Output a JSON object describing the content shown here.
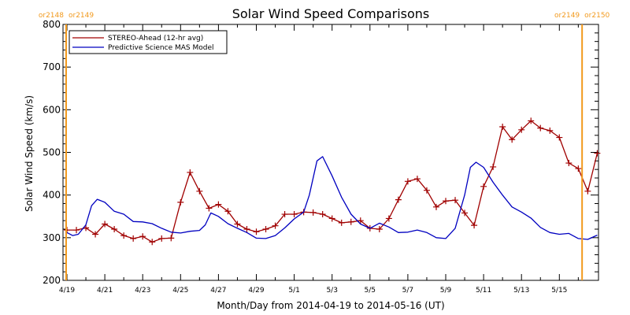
{
  "chart_data": {
    "type": "line",
    "title": "Solar Wind Speed Comparisons",
    "xlabel": "Month/Day from 2014-04-19 to 2014-05-16 (UT)",
    "ylabel": "Solar Wind Speed (km/s)",
    "ylim": [
      200,
      800
    ],
    "xlim_days": [
      0,
      27.2
    ],
    "x_ticks": [
      {
        "day": 0,
        "label": "4/19"
      },
      {
        "day": 2,
        "label": "4/21"
      },
      {
        "day": 4,
        "label": "4/23"
      },
      {
        "day": 6,
        "label": "4/25"
      },
      {
        "day": 8,
        "label": "4/27"
      },
      {
        "day": 10,
        "label": "4/29"
      },
      {
        "day": 12,
        "label": "5/1"
      },
      {
        "day": 14,
        "label": "5/3"
      },
      {
        "day": 16,
        "label": "5/5"
      },
      {
        "day": 18,
        "label": "5/7"
      },
      {
        "day": 20,
        "label": "5/9"
      },
      {
        "day": 22,
        "label": "5/11"
      },
      {
        "day": 24,
        "label": "5/13"
      },
      {
        "day": 26,
        "label": "5/15"
      }
    ],
    "y_ticks": [
      200,
      300,
      400,
      500,
      600,
      700,
      800
    ],
    "grid": false,
    "legend": "top-left",
    "series": [
      {
        "name": "STEREO-Ahead (12-hr avg)",
        "color": "#a00000",
        "marker": "plus",
        "points": [
          [
            0,
            318
          ],
          [
            0.5,
            318
          ],
          [
            1,
            323
          ],
          [
            1.5,
            308
          ],
          [
            2,
            332
          ],
          [
            2.5,
            320
          ],
          [
            3,
            305
          ],
          [
            3.5,
            298
          ],
          [
            4,
            303
          ],
          [
            4.5,
            290
          ],
          [
            5,
            298
          ],
          [
            5.5,
            299
          ],
          [
            6,
            383
          ],
          [
            6.5,
            453
          ],
          [
            7,
            409
          ],
          [
            7.5,
            369
          ],
          [
            8,
            378
          ],
          [
            8.5,
            362
          ],
          [
            9,
            332
          ],
          [
            9.5,
            320
          ],
          [
            10,
            314
          ],
          [
            10.5,
            320
          ],
          [
            11,
            328
          ],
          [
            11.5,
            355
          ],
          [
            12,
            355
          ],
          [
            12.5,
            360
          ],
          [
            13,
            359
          ],
          [
            13.5,
            355
          ],
          [
            14,
            345
          ],
          [
            14.5,
            335
          ],
          [
            15,
            337
          ],
          [
            15.5,
            340
          ],
          [
            16,
            322
          ],
          [
            16.5,
            320
          ],
          [
            17,
            345
          ],
          [
            17.5,
            389
          ],
          [
            18,
            432
          ],
          [
            18.5,
            438
          ],
          [
            19,
            411
          ],
          [
            19.5,
            372
          ],
          [
            20,
            386
          ],
          [
            20.5,
            388
          ],
          [
            21,
            358
          ],
          [
            21.5,
            329
          ],
          [
            22,
            420
          ],
          [
            22.5,
            466
          ],
          [
            23,
            560
          ],
          [
            23.5,
            530
          ],
          [
            24,
            553
          ],
          [
            24.5,
            574
          ],
          [
            25,
            557
          ],
          [
            25.5,
            551
          ],
          [
            26,
            535
          ],
          [
            26.5,
            475
          ],
          [
            27,
            462
          ],
          [
            27.5,
            409
          ],
          [
            28,
            498
          ]
        ]
      },
      {
        "name": "Predictive Science MAS Model",
        "color": "#0000c0",
        "marker": "none",
        "points": [
          [
            0,
            312
          ],
          [
            0.3,
            305
          ],
          [
            0.6,
            308
          ],
          [
            1,
            330
          ],
          [
            1.3,
            375
          ],
          [
            1.6,
            390
          ],
          [
            2,
            383
          ],
          [
            2.5,
            362
          ],
          [
            3,
            355
          ],
          [
            3.5,
            338
          ],
          [
            4,
            337
          ],
          [
            4.5,
            333
          ],
          [
            5,
            322
          ],
          [
            5.5,
            313
          ],
          [
            6,
            311
          ],
          [
            6.5,
            315
          ],
          [
            7,
            317
          ],
          [
            7.3,
            330
          ],
          [
            7.6,
            358
          ],
          [
            8,
            350
          ],
          [
            8.5,
            333
          ],
          [
            9,
            322
          ],
          [
            9.5,
            312
          ],
          [
            10,
            299
          ],
          [
            10.5,
            298
          ],
          [
            11,
            305
          ],
          [
            11.5,
            323
          ],
          [
            12,
            344
          ],
          [
            12.5,
            360
          ],
          [
            12.8,
            400
          ],
          [
            13.2,
            480
          ],
          [
            13.5,
            490
          ],
          [
            14,
            445
          ],
          [
            14.5,
            395
          ],
          [
            15,
            355
          ],
          [
            15.5,
            332
          ],
          [
            16,
            322
          ],
          [
            16.5,
            334
          ],
          [
            17,
            325
          ],
          [
            17.5,
            312
          ],
          [
            18,
            313
          ],
          [
            18.5,
            318
          ],
          [
            19,
            312
          ],
          [
            19.5,
            300
          ],
          [
            20,
            298
          ],
          [
            20.5,
            322
          ],
          [
            21,
            400
          ],
          [
            21.3,
            465
          ],
          [
            21.6,
            477
          ],
          [
            22,
            465
          ],
          [
            22.5,
            430
          ],
          [
            23,
            400
          ],
          [
            23.5,
            372
          ],
          [
            24,
            360
          ],
          [
            24.5,
            346
          ],
          [
            25,
            324
          ],
          [
            25.5,
            312
          ],
          [
            26,
            308
          ],
          [
            26.5,
            310
          ],
          [
            27,
            298
          ],
          [
            27.5,
            296
          ],
          [
            28,
            306
          ],
          [
            28.5,
            315
          ],
          [
            29,
            315
          ]
        ]
      }
    ],
    "carrington_markers": [
      {
        "label_left": "or2148",
        "label_right": "or2149",
        "day": 0
      },
      {
        "label_left": "or2149",
        "label_right": "or2150",
        "day": 27.2
      }
    ],
    "marker_color": "#f29a1e"
  }
}
